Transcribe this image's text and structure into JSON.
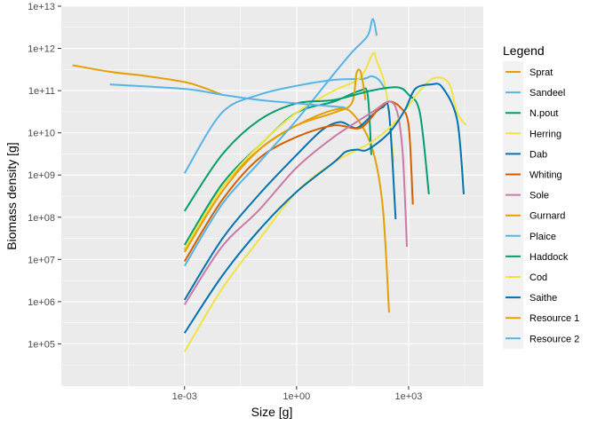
{
  "chart_data": {
    "type": "line",
    "xlabel": "Size [g]",
    "ylabel": "Biomass density [g]",
    "x_scale": "log10",
    "y_scale": "log10",
    "xlim": [
      5e-07,
      100000
    ],
    "ylim": [
      10000,
      10000000000000
    ],
    "x_ticks": [
      {
        "value": 0.001,
        "label": "1e-03"
      },
      {
        "value": 1,
        "label": "1e+00"
      },
      {
        "value": 1000,
        "label": "1e+03"
      }
    ],
    "y_ticks": [
      {
        "value": 100000,
        "label": "1e+05"
      },
      {
        "value": 1000000,
        "label": "1e+06"
      },
      {
        "value": 10000000,
        "label": "1e+07"
      },
      {
        "value": 100000000,
        "label": "1e+08"
      },
      {
        "value": 1000000000,
        "label": "1e+09"
      },
      {
        "value": 10000000000,
        "label": "1e+10"
      },
      {
        "value": 100000000000,
        "label": "1e+11"
      },
      {
        "value": 1000000000000,
        "label": "1e+12"
      },
      {
        "value": 10000000000000,
        "label": "1e+13"
      }
    ],
    "grid": true,
    "legend_title": "Legend",
    "legend_position": "right",
    "series": [
      {
        "name": "Sprat",
        "color": "#E69F00",
        "points": [
          [
            0.001,
            17000000.0
          ],
          [
            0.01,
            500000000.0
          ],
          [
            0.1,
            4000000000.0
          ],
          [
            1,
            15000000000.0
          ],
          [
            10,
            35000000000.0
          ],
          [
            30,
            30000000000.0
          ],
          [
            100,
            5000000000.0
          ],
          [
            200,
            200000000.0
          ],
          [
            300,
            550000.0
          ]
        ]
      },
      {
        "name": "Sandeel",
        "color": "#56B4E9",
        "points": [
          [
            0.001,
            1100000000.0
          ],
          [
            0.01,
            30000000000.0
          ],
          [
            0.1,
            80000000000.0
          ],
          [
            1,
            130000000000.0
          ],
          [
            10,
            180000000000.0
          ],
          [
            60,
            190000000000.0
          ],
          [
            100,
            220000000000.0
          ],
          [
            160,
            180000000000.0
          ],
          [
            250,
            100000000000.0
          ]
        ]
      },
      {
        "name": "N.pout",
        "color": "#009E73",
        "points": [
          [
            0.001,
            22000000.0
          ],
          [
            0.01,
            600000000.0
          ],
          [
            0.1,
            5000000000.0
          ],
          [
            1,
            30000000000.0
          ],
          [
            10,
            55000000000.0
          ],
          [
            50,
            100000000000.0
          ],
          [
            80,
            80000000000.0
          ],
          [
            100,
            3000000000.0
          ]
        ]
      },
      {
        "name": "Herring",
        "color": "#F0E442",
        "points": [
          [
            0.001,
            18000000.0
          ],
          [
            0.01,
            500000000.0
          ],
          [
            0.1,
            5000000000.0
          ],
          [
            1,
            30000000000.0
          ],
          [
            10,
            100000000000.0
          ],
          [
            50,
            200000000000.0
          ],
          [
            110,
            750000000000.0
          ],
          [
            140,
            500000000000.0
          ],
          [
            250,
            100000000000.0
          ],
          [
            400,
            2000000000.0
          ]
        ]
      },
      {
        "name": "Dab",
        "color": "#0072B2",
        "points": [
          [
            0.001,
            1100000.0
          ],
          [
            0.01,
            30000000.0
          ],
          [
            0.1,
            350000000.0
          ],
          [
            1,
            3000000000.0
          ],
          [
            5,
            12000000000.0
          ],
          [
            15,
            18000000000.0
          ],
          [
            40,
            13000000000.0
          ],
          [
            100,
            25000000000.0
          ],
          [
            200,
            40000000000.0
          ],
          [
            300,
            30000000000.0
          ],
          [
            450,
            90000000.0
          ]
        ]
      },
      {
        "name": "Whiting",
        "color": "#D55E00",
        "points": [
          [
            0.001,
            9000000.0
          ],
          [
            0.01,
            250000000.0
          ],
          [
            0.1,
            2500000000.0
          ],
          [
            1,
            8000000000.0
          ],
          [
            10,
            15000000000.0
          ],
          [
            50,
            13000000000.0
          ],
          [
            150,
            35000000000.0
          ],
          [
            300,
            55000000000.0
          ],
          [
            600,
            40000000000.0
          ],
          [
            1000,
            15000000000.0
          ],
          [
            1300,
            200000000.0
          ]
        ]
      },
      {
        "name": "Sole",
        "color": "#CC79A7",
        "points": [
          [
            0.001,
            850000.0
          ],
          [
            0.01,
            20000000.0
          ],
          [
            0.1,
            150000000.0
          ],
          [
            1,
            1500000000.0
          ],
          [
            10,
            8000000000.0
          ],
          [
            100,
            30000000000.0
          ],
          [
            300,
            55000000000.0
          ],
          [
            500,
            30000000000.0
          ],
          [
            700,
            3000000000.0
          ],
          [
            900,
            20000000.0
          ]
        ]
      },
      {
        "name": "Gurnard",
        "color": "#E69F00",
        "points": [
          [
            0.001,
            15000000.0
          ],
          [
            0.01,
            400000000.0
          ],
          [
            0.1,
            4000000000.0
          ],
          [
            1,
            15000000000.0
          ],
          [
            10,
            30000000000.0
          ],
          [
            30,
            50000000000.0
          ],
          [
            40,
            250000000000.0
          ],
          [
            50,
            300000000000.0
          ],
          [
            60,
            150000000000.0
          ],
          [
            70,
            60000000000.0
          ]
        ]
      },
      {
        "name": "Plaice",
        "color": "#56B4E9",
        "points": [
          [
            0.001,
            7000000.0
          ],
          [
            0.01,
            200000000.0
          ],
          [
            0.1,
            2000000000.0
          ],
          [
            1,
            20000000000.0
          ],
          [
            10,
            250000000000.0
          ],
          [
            30,
            800000000000.0
          ],
          [
            80,
            2000000000000.0
          ],
          [
            110,
            5000000000000.0
          ],
          [
            140,
            2000000000000.0
          ]
        ]
      },
      {
        "name": "Haddock",
        "color": "#009E73",
        "points": [
          [
            0.001,
            140000000.0
          ],
          [
            0.01,
            3000000000.0
          ],
          [
            0.1,
            20000000000.0
          ],
          [
            1,
            50000000000.0
          ],
          [
            10,
            60000000000.0
          ],
          [
            100,
            100000000000.0
          ],
          [
            500,
            120000000000.0
          ],
          [
            1000,
            80000000000.0
          ],
          [
            2000,
            30000000000.0
          ],
          [
            3500,
            350000000.0
          ]
        ]
      },
      {
        "name": "Cod",
        "color": "#F0E442",
        "points": [
          [
            0.001,
            65000.0
          ],
          [
            0.01,
            2000000.0
          ],
          [
            0.1,
            30000000.0
          ],
          [
            1,
            400000000.0
          ],
          [
            10,
            2000000000.0
          ],
          [
            100,
            6000000000.0
          ],
          [
            500,
            20000000000.0
          ],
          [
            2000,
            100000000000.0
          ],
          [
            5000,
            200000000000.0
          ],
          [
            12000,
            150000000000.0
          ],
          [
            20000,
            30000000000.0
          ],
          [
            35000,
            15000000000.0
          ]
        ]
      },
      {
        "name": "Saithe",
        "color": "#0072B2",
        "points": [
          [
            0.001,
            180000.0
          ],
          [
            0.01,
            4000000.0
          ],
          [
            0.1,
            50000000.0
          ],
          [
            1,
            400000000.0
          ],
          [
            10,
            2000000000.0
          ],
          [
            20,
            3500000000.0
          ],
          [
            40,
            4000000000.0
          ],
          [
            80,
            4000000000.0
          ],
          [
            300,
            10000000000.0
          ],
          [
            800,
            35000000000.0
          ],
          [
            1500,
            110000000000.0
          ],
          [
            4000,
            140000000000.0
          ],
          [
            8000,
            120000000000.0
          ],
          [
            20000,
            20000000000.0
          ],
          [
            30000,
            350000000.0
          ]
        ]
      },
      {
        "name": "Resource 1",
        "color": "#E69F00",
        "points": [
          [
            1e-06,
            400000000000.0
          ],
          [
            1e-05,
            280000000000.0
          ],
          [
            0.0001,
            220000000000.0
          ],
          [
            0.001,
            160000000000.0
          ],
          [
            0.003,
            120000000000.0
          ],
          [
            0.01,
            80000000000.0
          ]
        ]
      },
      {
        "name": "Resource 2",
        "color": "#56B4E9",
        "points": [
          [
            1e-05,
            140000000000.0
          ],
          [
            0.001,
            110000000000.0
          ],
          [
            0.01,
            80000000000.0
          ],
          [
            0.1,
            60000000000.0
          ],
          [
            1,
            50000000000.0
          ],
          [
            10,
            42000000000.0
          ],
          [
            20,
            40000000000.0
          ]
        ]
      }
    ]
  }
}
